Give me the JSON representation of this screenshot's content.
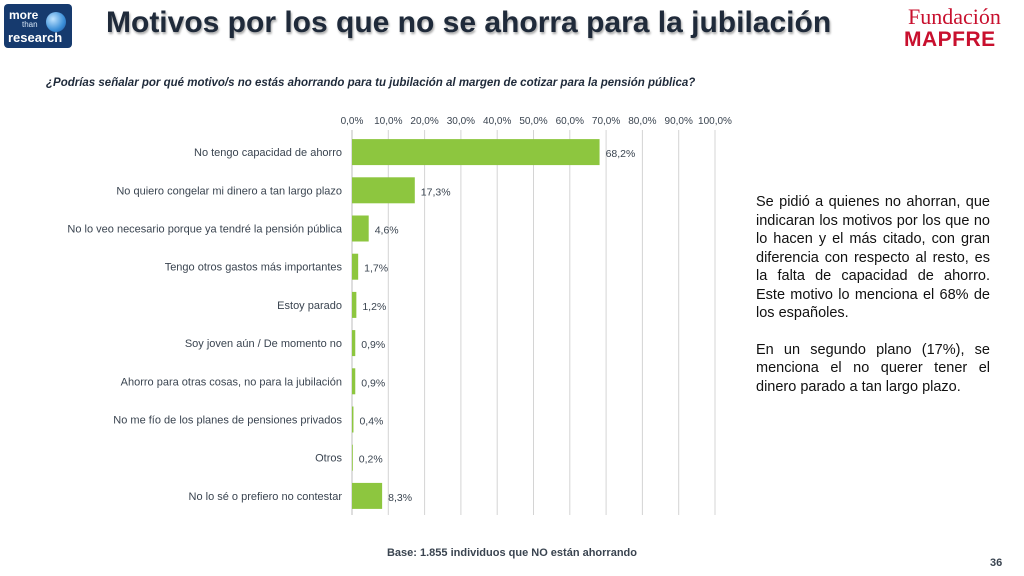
{
  "header": {
    "logo_left": {
      "line1": "more",
      "line2": "than",
      "line3": "research"
    },
    "title": "Motivos por los que no se ahorra para la jubilación",
    "logo_right": {
      "line1": "Fundación",
      "line2": "MAPFRE"
    }
  },
  "subtitle": "¿Podrías señalar por qué motivo/s no estás ahorrando para tu jubilación al margen de cotizar para la pensión pública?",
  "chart_data": {
    "type": "bar",
    "orientation": "horizontal",
    "categories": [
      "No tengo capacidad de ahorro",
      "No quiero congelar mi dinero a tan largo plazo",
      "No lo veo necesario porque ya tendré la pensión pública",
      "Tengo otros gastos más importantes",
      "Estoy parado",
      "Soy joven aún / De momento no",
      "Ahorro para otras cosas, no para la jubilación",
      "No me fío de los planes  de pensiones privados",
      "Otros",
      "No lo sé o prefiero no contestar"
    ],
    "values": [
      68.2,
      17.3,
      4.6,
      1.7,
      1.2,
      0.9,
      0.9,
      0.4,
      0.2,
      8.3
    ],
    "value_labels": [
      "68,2%",
      "17,3%",
      "4,6%",
      "1,7%",
      "1,2%",
      "0,9%",
      "0,9%",
      "0,4%",
      "0,2%",
      "8,3%"
    ],
    "xticks": [
      0,
      10,
      20,
      30,
      40,
      50,
      60,
      70,
      80,
      90,
      100
    ],
    "xtick_labels": [
      "0,0%",
      "10,0%",
      "20,0%",
      "30,0%",
      "40,0%",
      "50,0%",
      "60,0%",
      "70,0%",
      "80,0%",
      "90,0%",
      "100,0%"
    ],
    "xlim": [
      0,
      100
    ],
    "axis_position": "top",
    "grid": true,
    "bar_color": "#8dc63f",
    "grid_color": "#d4d4d4",
    "label_color": "#3a4450"
  },
  "description": {
    "paragraph1": "Se pidió a quienes no ahorran, que indicaran los motivos por los que no lo hacen y el más citado, con gran diferencia con respecto al resto, es la falta de capacidad de ahorro. Este motivo lo menciona el 68% de los españoles.",
    "paragraph2": "En un segundo plano (17%), se menciona el no querer tener el dinero parado a tan largo plazo."
  },
  "footer": {
    "base": "Base: 1.855 individuos que NO están ahorrando",
    "page_number": "36"
  }
}
